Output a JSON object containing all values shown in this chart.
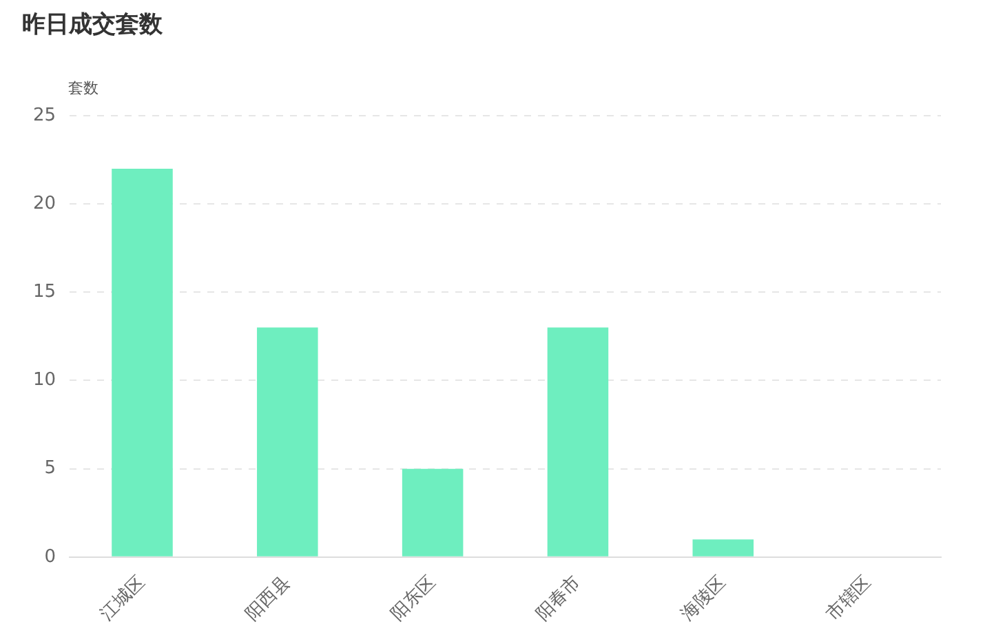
{
  "chart_data": {
    "type": "bar",
    "title": "昨日成交套数",
    "ylabel": "套数",
    "categories": [
      "江城区",
      "阳西县",
      "阳东区",
      "阳春市",
      "海陵区",
      "市辖区"
    ],
    "values": [
      22,
      13,
      5,
      13,
      1,
      0
    ],
    "color": "#6eeebf",
    "ylim": [
      0,
      25
    ],
    "yticks": [
      0,
      5,
      10,
      15,
      20,
      25
    ],
    "grid": "y",
    "legend": false
  }
}
